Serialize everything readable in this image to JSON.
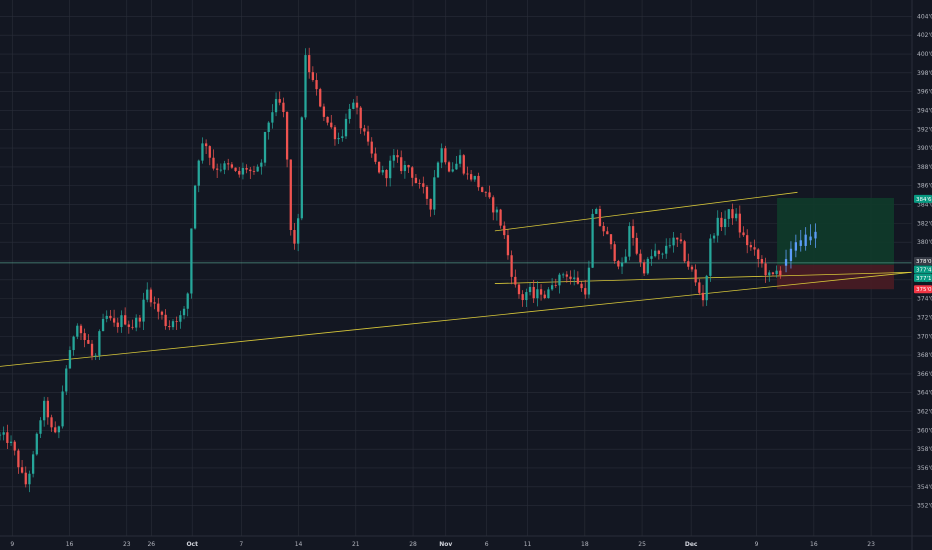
{
  "chart_data": {
    "type": "candlestick",
    "title": "",
    "ylabel": "",
    "xlabel": "",
    "ylim": [
      351,
      405
    ],
    "y_ticks": [
      "352'0",
      "354'0",
      "356'0",
      "358'0",
      "360'0",
      "362'0",
      "364'0",
      "366'0",
      "368'0",
      "370'0",
      "372'0",
      "374'0",
      "376'0",
      "378'0",
      "380'0",
      "382'0",
      "384'0",
      "386'0",
      "388'0",
      "390'0",
      "392'0",
      "394'0",
      "396'0",
      "398'0",
      "400'0",
      "402'0",
      "404'0"
    ],
    "x_ticks": [
      {
        "label": "9",
        "day": 0,
        "bold": false
      },
      {
        "label": "16",
        "day": 7,
        "bold": false
      },
      {
        "label": "23",
        "day": 14,
        "bold": false
      },
      {
        "label": "26",
        "day": 17,
        "bold": false
      },
      {
        "label": "Oct",
        "day": 22,
        "bold": true
      },
      {
        "label": "7",
        "day": 28,
        "bold": false
      },
      {
        "label": "14",
        "day": 35,
        "bold": false
      },
      {
        "label": "21",
        "day": 42,
        "bold": false
      },
      {
        "label": "28",
        "day": 49,
        "bold": false
      },
      {
        "label": "Nov",
        "day": 53,
        "bold": true
      },
      {
        "label": "6",
        "day": 58,
        "bold": false
      },
      {
        "label": "11",
        "day": 63,
        "bold": false
      },
      {
        "label": "18",
        "day": 70,
        "bold": false
      },
      {
        "label": "25",
        "day": 77,
        "bold": false
      },
      {
        "label": "Dec",
        "day": 83,
        "bold": true
      },
      {
        "label": "9",
        "day": 91,
        "bold": false
      },
      {
        "label": "16",
        "day": 98,
        "bold": false
      },
      {
        "label": "23",
        "day": 105,
        "bold": false
      }
    ],
    "x_range_days": [
      -1.5,
      110
    ],
    "anchors": [
      [
        -1.5,
        359.5
      ],
      [
        0,
        359
      ],
      [
        1,
        357
      ],
      [
        2,
        354
      ],
      [
        3,
        357
      ],
      [
        3.8,
        361
      ],
      [
        4.5,
        363
      ],
      [
        5.2,
        360
      ],
      [
        6,
        359
      ],
      [
        6.8,
        366
      ],
      [
        7.5,
        368
      ],
      [
        8.3,
        372
      ],
      [
        9,
        370
      ],
      [
        9.8,
        369
      ],
      [
        10.5,
        367
      ],
      [
        11.3,
        371
      ],
      [
        12,
        372
      ],
      [
        13,
        371
      ],
      [
        14,
        372
      ],
      [
        15,
        371
      ],
      [
        16,
        372
      ],
      [
        17,
        375
      ],
      [
        18,
        373
      ],
      [
        18.8,
        372
      ],
      [
        19.5,
        371
      ],
      [
        20.3,
        372
      ],
      [
        21,
        372
      ],
      [
        21.8,
        373
      ],
      [
        22.5,
        384
      ],
      [
        23.2,
        389
      ],
      [
        24,
        391
      ],
      [
        25,
        388
      ],
      [
        26,
        388
      ],
      [
        27,
        388
      ],
      [
        28,
        387
      ],
      [
        29,
        388
      ],
      [
        30,
        387
      ],
      [
        30.8,
        388
      ],
      [
        31.5,
        392
      ],
      [
        32.2,
        394
      ],
      [
        33,
        395
      ],
      [
        33.8,
        393
      ],
      [
        34.5,
        381
      ],
      [
        35,
        380
      ],
      [
        35.6,
        383
      ],
      [
        36,
        400
      ],
      [
        36.5,
        399
      ],
      [
        37.2,
        397
      ],
      [
        38,
        395
      ],
      [
        38.8,
        393
      ],
      [
        39.5,
        392
      ],
      [
        40.3,
        391
      ],
      [
        41,
        392
      ],
      [
        41.8,
        395
      ],
      [
        42.5,
        394
      ],
      [
        43.2,
        392
      ],
      [
        44,
        390
      ],
      [
        45,
        388
      ],
      [
        46,
        387
      ],
      [
        47,
        389
      ],
      [
        48,
        388
      ],
      [
        49,
        388
      ],
      [
        50,
        386
      ],
      [
        51,
        385
      ],
      [
        51.6,
        384
      ],
      [
        52.2,
        388
      ],
      [
        53,
        390
      ],
      [
        53.8,
        388
      ],
      [
        54.5,
        388
      ],
      [
        55.2,
        389
      ],
      [
        56,
        387
      ],
      [
        56.8,
        387
      ],
      [
        57.5,
        386
      ],
      [
        58.2,
        385
      ],
      [
        59,
        384
      ],
      [
        59.8,
        383
      ],
      [
        60.5,
        381
      ],
      [
        61.2,
        378
      ],
      [
        62,
        375
      ],
      [
        62.8,
        374
      ],
      [
        63.5,
        375
      ],
      [
        64.3,
        374
      ],
      [
        65,
        375
      ],
      [
        65.8,
        374
      ],
      [
        66.5,
        376
      ],
      [
        67.3,
        376
      ],
      [
        68,
        377
      ],
      [
        68.8,
        376
      ],
      [
        69.5,
        376
      ],
      [
        70,
        375
      ],
      [
        70.8,
        375
      ],
      [
        71.5,
        384
      ],
      [
        72.2,
        382
      ],
      [
        73,
        381
      ],
      [
        73.8,
        379
      ],
      [
        74.5,
        378
      ],
      [
        75.2,
        377
      ],
      [
        76,
        382
      ],
      [
        76.8,
        379
      ],
      [
        77.5,
        377
      ],
      [
        78.3,
        378
      ],
      [
        79,
        379
      ],
      [
        79.8,
        378
      ],
      [
        80.5,
        380
      ],
      [
        81.2,
        380
      ],
      [
        82,
        380
      ],
      [
        82.8,
        378
      ],
      [
        83.5,
        377
      ],
      [
        84.2,
        375
      ],
      [
        85,
        374
      ],
      [
        85.8,
        380
      ],
      [
        86.5,
        382
      ],
      [
        87.2,
        382
      ],
      [
        88,
        383
      ],
      [
        88.8,
        383
      ],
      [
        89.5,
        381
      ],
      [
        90.2,
        380
      ],
      [
        91,
        379
      ],
      [
        91.8,
        378
      ],
      [
        92.5,
        377
      ],
      [
        93.2,
        376
      ],
      [
        94,
        377
      ]
    ],
    "forecast_bars": [
      {
        "day": 94.6,
        "o": 377.5,
        "h": 379.2,
        "l": 376.8,
        "c": 378.2
      },
      {
        "day": 95.2,
        "o": 378.0,
        "h": 380.1,
        "l": 377.2,
        "c": 379.3
      },
      {
        "day": 95.8,
        "o": 379.1,
        "h": 380.8,
        "l": 378.4,
        "c": 380.0
      },
      {
        "day": 96.4,
        "o": 380.2,
        "h": 381.3,
        "l": 379.0,
        "c": 379.6
      },
      {
        "day": 97.0,
        "o": 379.6,
        "h": 381.6,
        "l": 379.1,
        "c": 380.8
      },
      {
        "day": 97.6,
        "o": 380.6,
        "h": 381.9,
        "l": 379.7,
        "c": 380.2
      },
      {
        "day": 98.2,
        "o": 380.4,
        "h": 382.0,
        "l": 379.4,
        "c": 381.1
      }
    ],
    "support_line": [
      [
        -1.5,
        366.8
      ],
      [
        110,
        376.8
      ]
    ],
    "channel_lower": [
      [
        59,
        375.6
      ],
      [
        110,
        376.8
      ]
    ],
    "channel_upper": [
      [
        59,
        381.2
      ],
      [
        96,
        385.3
      ]
    ],
    "current_price_level": 377.8,
    "position": {
      "entry": 377.6,
      "target": 384.7,
      "stop": 375.0,
      "start_day": 93.5,
      "end_day": 107.8
    },
    "price_badges": [
      {
        "text": "384'6",
        "value": 384.6,
        "color": "#089981"
      },
      {
        "text": "378'0",
        "value": 378.0,
        "color": "#363a45"
      },
      {
        "text": "377'4",
        "value": 377.1,
        "color": "#089981"
      },
      {
        "text": "377'1",
        "value": 376.2,
        "color": "#089981"
      },
      {
        "text": "375'0",
        "value": 375.0,
        "color": "#f23645"
      }
    ],
    "colors": {
      "up": "#26a69a",
      "down": "#ef5350",
      "forecast": "#5b9cf6",
      "trendline": "#d8c83a",
      "grid": "#2a2e39",
      "background": "#131722",
      "price_line": "#4e8f80",
      "target_zone": "#0f3b2a",
      "stop_zone": "#4a1c23"
    },
    "grid": true,
    "legend": "none"
  }
}
